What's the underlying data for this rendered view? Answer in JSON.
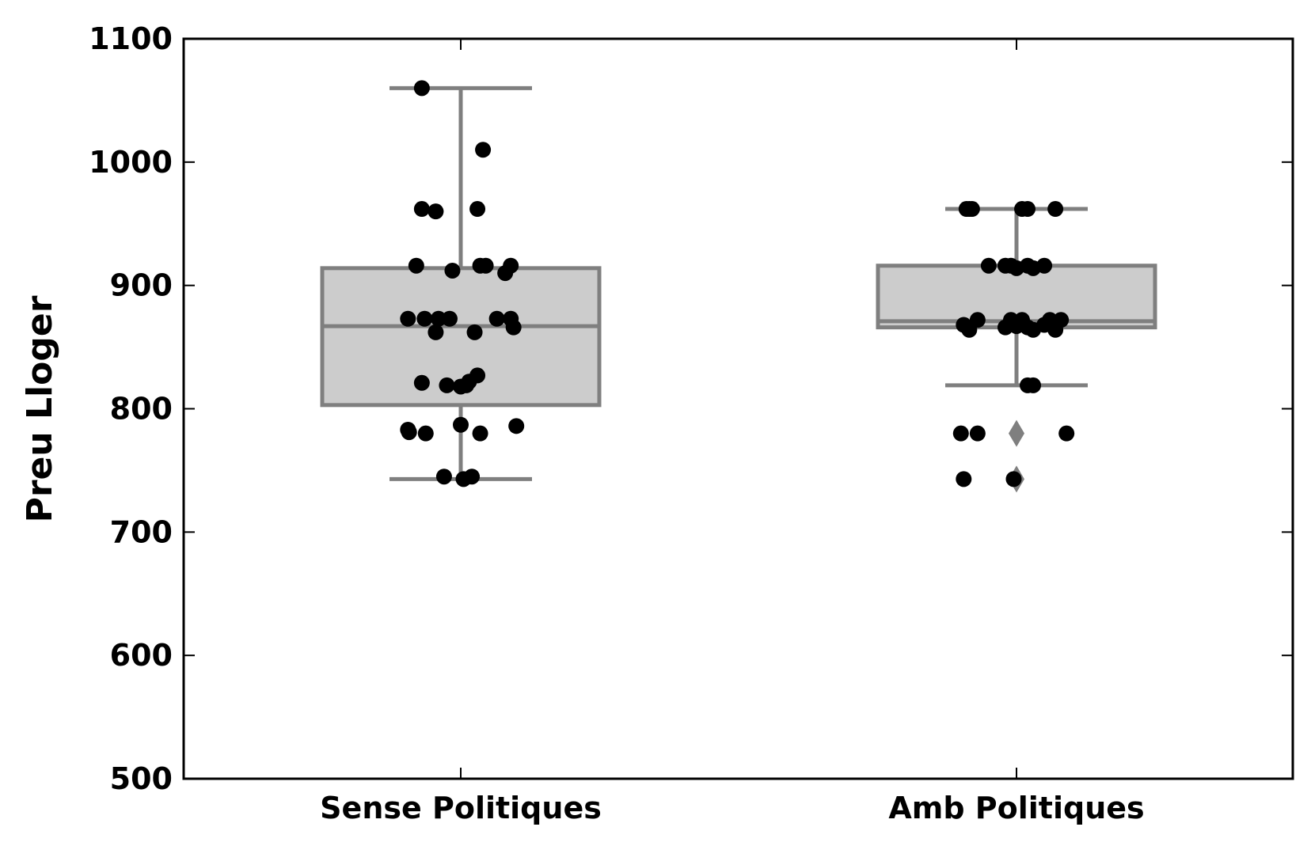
{
  "chart_data": {
    "type": "box",
    "ylabel": "Preu Lloger",
    "xlabel": "",
    "ylim": [
      500,
      1100
    ],
    "yticks": [
      500,
      600,
      700,
      800,
      900,
      1000,
      1100
    ],
    "categories": [
      "Sense Politiques",
      "Amb Politiques"
    ],
    "grid": false,
    "colors": {
      "box_fill": "#cccccc",
      "box_edge": "#7f7f7f",
      "points": "#000000",
      "outlier": "#7f7f7f"
    },
    "series": [
      {
        "category": "Sense Politiques",
        "box": {
          "q1": 803,
          "median": 867,
          "q3": 914,
          "whisker_low": 743,
          "whisker_high": 1060
        },
        "outliers": [],
        "points": [
          {
            "jit": -0.07,
            "y": 1060
          },
          {
            "jit": 0.04,
            "y": 1010
          },
          {
            "jit": -0.07,
            "y": 962
          },
          {
            "jit": -0.045,
            "y": 960
          },
          {
            "jit": 0.03,
            "y": 962
          },
          {
            "jit": -0.08,
            "y": 916
          },
          {
            "jit": -0.015,
            "y": 912
          },
          {
            "jit": 0.035,
            "y": 916
          },
          {
            "jit": 0.045,
            "y": 916
          },
          {
            "jit": 0.08,
            "y": 910
          },
          {
            "jit": 0.09,
            "y": 916
          },
          {
            "jit": -0.095,
            "y": 873
          },
          {
            "jit": -0.065,
            "y": 873
          },
          {
            "jit": -0.04,
            "y": 873
          },
          {
            "jit": -0.02,
            "y": 873
          },
          {
            "jit": 0.065,
            "y": 873
          },
          {
            "jit": 0.09,
            "y": 873
          },
          {
            "jit": -0.045,
            "y": 862
          },
          {
            "jit": 0.025,
            "y": 862
          },
          {
            "jit": 0.095,
            "y": 866
          },
          {
            "jit": -0.07,
            "y": 821
          },
          {
            "jit": -0.025,
            "y": 819
          },
          {
            "jit": 0.0,
            "y": 818
          },
          {
            "jit": 0.01,
            "y": 819
          },
          {
            "jit": 0.015,
            "y": 822
          },
          {
            "jit": 0.03,
            "y": 827
          },
          {
            "jit": -0.095,
            "y": 783
          },
          {
            "jit": -0.093,
            "y": 781
          },
          {
            "jit": -0.063,
            "y": 780
          },
          {
            "jit": 0.0,
            "y": 787
          },
          {
            "jit": 0.035,
            "y": 780
          },
          {
            "jit": 0.1,
            "y": 786
          },
          {
            "jit": -0.03,
            "y": 745
          },
          {
            "jit": 0.005,
            "y": 743
          },
          {
            "jit": 0.02,
            "y": 745
          }
        ]
      },
      {
        "category": "Amb Politiques",
        "box": {
          "q1": 866,
          "median": 871,
          "q3": 916,
          "whisker_low": 819,
          "whisker_high": 962
        },
        "outliers": [
          780,
          743
        ],
        "points": [
          {
            "jit": -0.09,
            "y": 962
          },
          {
            "jit": -0.085,
            "y": 962
          },
          {
            "jit": -0.08,
            "y": 962
          },
          {
            "jit": 0.01,
            "y": 962
          },
          {
            "jit": 0.02,
            "y": 962
          },
          {
            "jit": 0.07,
            "y": 962
          },
          {
            "jit": -0.05,
            "y": 916
          },
          {
            "jit": -0.02,
            "y": 916
          },
          {
            "jit": -0.01,
            "y": 916
          },
          {
            "jit": 0.0,
            "y": 914
          },
          {
            "jit": 0.02,
            "y": 916
          },
          {
            "jit": 0.03,
            "y": 914
          },
          {
            "jit": 0.05,
            "y": 916
          },
          {
            "jit": -0.095,
            "y": 868
          },
          {
            "jit": -0.07,
            "y": 872
          },
          {
            "jit": -0.02,
            "y": 866
          },
          {
            "jit": -0.01,
            "y": 872
          },
          {
            "jit": 0.0,
            "y": 867
          },
          {
            "jit": 0.01,
            "y": 872
          },
          {
            "jit": 0.02,
            "y": 866
          },
          {
            "jit": 0.05,
            "y": 868
          },
          {
            "jit": 0.06,
            "y": 872
          },
          {
            "jit": 0.08,
            "y": 872
          },
          {
            "jit": -0.085,
            "y": 864
          },
          {
            "jit": 0.03,
            "y": 864
          },
          {
            "jit": 0.07,
            "y": 864
          },
          {
            "jit": 0.02,
            "y": 819
          },
          {
            "jit": 0.03,
            "y": 819
          },
          {
            "jit": -0.1,
            "y": 780
          },
          {
            "jit": -0.07,
            "y": 780
          },
          {
            "jit": 0.09,
            "y": 780
          },
          {
            "jit": -0.095,
            "y": 743
          },
          {
            "jit": -0.005,
            "y": 743
          }
        ]
      }
    ]
  }
}
